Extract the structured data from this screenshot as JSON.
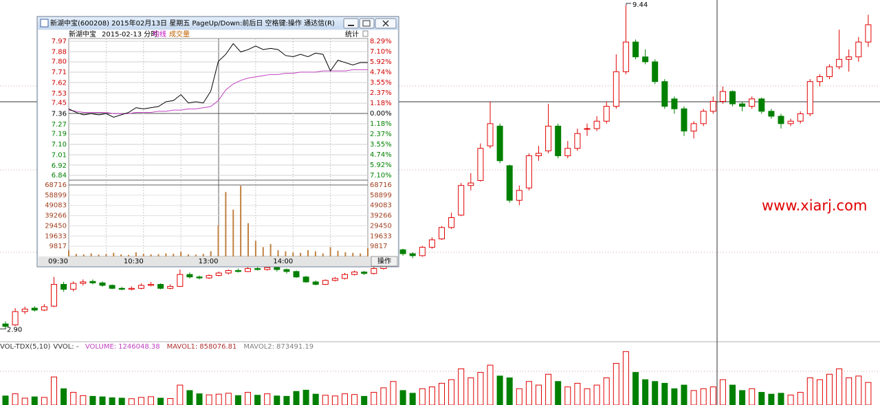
{
  "window": {
    "title": "新湖中宝(600208) 2015年02月13日 星期五 PageUp/Down:前后日 空格键:操作 通达信(R)"
  },
  "watermark": "www.xiarj.com",
  "chart_data": [
    {
      "type": "candlestick",
      "candles": [
        [
          3.0,
          3.05,
          2.9,
          2.95
        ],
        [
          2.98,
          3.32,
          2.96,
          3.25
        ],
        [
          3.25,
          3.35,
          3.2,
          3.3
        ],
        [
          3.32,
          3.36,
          3.25,
          3.28
        ],
        [
          3.28,
          3.4,
          3.26,
          3.35
        ],
        [
          3.36,
          3.95,
          3.34,
          3.8
        ],
        [
          3.8,
          3.85,
          3.65,
          3.7
        ],
        [
          3.7,
          3.86,
          3.66,
          3.82
        ],
        [
          3.82,
          3.9,
          3.78,
          3.85
        ],
        [
          3.86,
          3.9,
          3.8,
          3.83
        ],
        [
          3.83,
          3.86,
          3.75,
          3.78
        ],
        [
          3.78,
          3.8,
          3.7,
          3.72
        ],
        [
          3.72,
          3.75,
          3.68,
          3.7
        ],
        [
          3.7,
          3.76,
          3.68,
          3.72
        ],
        [
          3.72,
          3.82,
          3.7,
          3.78
        ],
        [
          3.78,
          3.85,
          3.76,
          3.8
        ],
        [
          3.8,
          3.82,
          3.7,
          3.72
        ],
        [
          3.72,
          3.8,
          3.7,
          3.76
        ],
        [
          3.76,
          4.1,
          3.75,
          4.0
        ],
        [
          4.0,
          4.04,
          3.92,
          3.95
        ],
        [
          3.95,
          3.98,
          3.9,
          3.93
        ],
        [
          3.93,
          4.0,
          3.91,
          3.98
        ],
        [
          3.98,
          4.06,
          3.96,
          4.03
        ],
        [
          4.03,
          4.1,
          4.0,
          4.08
        ],
        [
          4.08,
          4.12,
          4.04,
          4.06
        ],
        [
          4.06,
          4.15,
          4.05,
          4.12
        ],
        [
          4.12,
          4.16,
          4.08,
          4.1
        ],
        [
          4.1,
          4.18,
          4.08,
          4.14
        ],
        [
          4.14,
          4.16,
          4.06,
          4.1
        ],
        [
          4.1,
          4.12,
          4.02,
          4.06
        ],
        [
          4.06,
          4.08,
          3.93,
          3.95
        ],
        [
          3.95,
          3.97,
          3.83,
          3.85
        ],
        [
          3.85,
          3.88,
          3.78,
          3.8
        ],
        [
          3.8,
          3.9,
          3.79,
          3.88
        ],
        [
          3.88,
          3.95,
          3.86,
          3.92
        ],
        [
          3.92,
          4.03,
          3.9,
          4.0
        ],
        [
          4.0,
          4.08,
          3.98,
          4.05
        ],
        [
          4.05,
          4.07,
          3.99,
          4.02
        ],
        [
          4.02,
          4.15,
          4.0,
          4.12
        ],
        [
          4.12,
          4.35,
          4.1,
          4.3
        ],
        [
          4.3,
          4.55,
          4.28,
          4.5
        ],
        [
          4.5,
          4.52,
          4.38,
          4.42
        ],
        [
          4.42,
          4.45,
          4.33,
          4.38
        ],
        [
          4.38,
          4.58,
          4.36,
          4.55
        ],
        [
          4.55,
          4.75,
          4.52,
          4.7
        ],
        [
          4.72,
          4.98,
          4.7,
          4.95
        ],
        [
          4.95,
          5.25,
          4.92,
          5.15
        ],
        [
          5.2,
          5.85,
          5.18,
          5.8
        ],
        [
          5.8,
          6.05,
          5.7,
          5.85
        ],
        [
          5.9,
          6.65,
          5.88,
          6.55
        ],
        [
          6.6,
          7.5,
          6.55,
          7.05
        ],
        [
          7.0,
          7.05,
          6.25,
          6.3
        ],
        [
          6.2,
          6.22,
          5.45,
          5.5
        ],
        [
          5.5,
          5.8,
          5.4,
          5.7
        ],
        [
          5.75,
          6.45,
          5.7,
          6.4
        ],
        [
          6.4,
          6.6,
          6.3,
          6.45
        ],
        [
          6.5,
          7.45,
          6.45,
          7.0
        ],
        [
          7.0,
          7.05,
          6.35,
          6.4
        ],
        [
          6.4,
          6.7,
          6.35,
          6.55
        ],
        [
          6.55,
          6.95,
          6.5,
          6.85
        ],
        [
          6.95,
          7.05,
          6.8,
          6.95
        ],
        [
          6.95,
          7.2,
          6.9,
          7.1
        ],
        [
          7.1,
          7.5,
          7.05,
          7.4
        ],
        [
          7.4,
          8.45,
          7.35,
          8.1
        ],
        [
          8.1,
          9.44,
          8.05,
          8.7
        ],
        [
          8.7,
          8.75,
          8.35,
          8.4
        ],
        [
          8.4,
          8.55,
          8.25,
          8.3
        ],
        [
          8.3,
          8.35,
          7.85,
          7.9
        ],
        [
          7.9,
          7.95,
          7.35,
          7.4
        ],
        [
          7.55,
          7.6,
          7.25,
          7.35
        ],
        [
          7.35,
          7.4,
          6.8,
          6.9
        ],
        [
          6.9,
          7.1,
          6.75,
          7.05
        ],
        [
          7.05,
          7.35,
          7.0,
          7.3
        ],
        [
          7.3,
          7.6,
          7.25,
          7.5
        ],
        [
          7.5,
          7.8,
          7.45,
          7.7
        ],
        [
          7.7,
          7.72,
          7.4,
          7.45
        ],
        [
          7.45,
          7.5,
          7.3,
          7.4
        ],
        [
          7.4,
          7.6,
          7.35,
          7.55
        ],
        [
          7.55,
          7.58,
          7.25,
          7.3
        ],
        [
          7.3,
          7.35,
          7.15,
          7.2
        ],
        [
          7.2,
          7.25,
          6.95,
          7.05
        ],
        [
          7.05,
          7.15,
          7.0,
          7.1
        ],
        [
          7.1,
          7.3,
          7.05,
          7.25
        ],
        [
          7.25,
          7.95,
          7.2,
          7.9
        ],
        [
          7.9,
          8.05,
          7.8,
          8.0
        ],
        [
          8.0,
          8.25,
          7.95,
          8.2
        ],
        [
          8.2,
          8.95,
          8.15,
          8.35
        ],
        [
          8.35,
          8.55,
          8.1,
          8.4
        ],
        [
          8.4,
          8.8,
          8.3,
          8.7
        ],
        [
          8.7,
          9.25,
          8.6,
          9.05
        ]
      ],
      "ylim": [
        2.64,
        9.55
      ],
      "high_label": 9.44,
      "low_label": {
        "value": 2.9,
        "label": "2.90"
      },
      "up_color": "#e00000",
      "down_color": "#008000",
      "volume": {
        "ylim": [
          0,
          3000000
        ],
        "values": [
          500000,
          620000,
          380000,
          450000,
          420000,
          1550000,
          900000,
          700000,
          520000,
          480000,
          450000,
          400000,
          380000,
          350000,
          420000,
          460000,
          380000,
          360000,
          1100000,
          800000,
          620000,
          560000,
          600000,
          650000,
          520000,
          700000,
          540000,
          620000,
          500000,
          480000,
          750000,
          820000,
          600000,
          540000,
          500000,
          620000,
          580000,
          480000,
          700000,
          950000,
          1300000,
          800000,
          650000,
          900000,
          1000000,
          1200000,
          1400000,
          2000000,
          1500000,
          1800000,
          2200000,
          1600000,
          1500000,
          900000,
          1300000,
          1100000,
          1700000,
          1300000,
          1000000,
          1200000,
          900000,
          1100000,
          1500000,
          2300000,
          2950000,
          1800000,
          1400000,
          1300000,
          1200000,
          900000,
          1100000,
          800000,
          900000,
          1000000,
          1400000,
          1100000,
          800000,
          900000,
          700000,
          600000,
          650000,
          550000,
          700000,
          1500000,
          1400000,
          1700000,
          2000000,
          1500000,
          1600000,
          1246048.38
        ]
      },
      "indicator": {
        "name": "VOL-TDX(5,10)",
        "vvol": "VVOL: -",
        "items": [
          {
            "label": "VOLUME:",
            "value": 1246048.38,
            "color": "#c040c0"
          },
          {
            "label": "MAVOL1:",
            "value": 858076.81,
            "color": "#b03030"
          },
          {
            "label": "MAVOL2:",
            "value": 873491.19,
            "color": "#808080"
          }
        ]
      }
    },
    {
      "type": "intraday",
      "title": "新湖中宝",
      "subtitle": "2015-02-13 分时",
      "legend": [
        {
          "name": "均线",
          "color": "#c000c0"
        },
        {
          "name": "成交量",
          "color": "#c06000"
        }
      ],
      "stats_button": "统计",
      "action_button": "操作",
      "x": [
        0,
        6,
        12,
        18,
        24,
        30,
        36,
        42,
        48,
        54,
        60,
        66,
        72,
        78,
        84,
        90,
        96,
        102,
        108,
        114,
        120,
        126,
        132,
        138,
        144,
        150,
        156,
        162,
        168,
        174,
        180,
        186,
        192,
        198,
        204,
        210,
        216,
        222,
        228,
        234,
        240
      ],
      "xlim": [
        0,
        240
      ],
      "xticks": [
        {
          "value": 0,
          "label": "09:30"
        },
        {
          "value": 60,
          "label": "10:30"
        },
        {
          "value": 120,
          "label": "13:00"
        },
        {
          "value": 180,
          "label": "14:00"
        }
      ],
      "price": {
        "color": "#000000",
        "values": [
          7.4,
          7.37,
          7.35,
          7.36,
          7.35,
          7.36,
          7.33,
          7.35,
          7.37,
          7.41,
          7.4,
          7.41,
          7.42,
          7.46,
          7.47,
          7.52,
          7.45,
          7.46,
          7.45,
          7.55,
          7.8,
          7.86,
          7.95,
          7.88,
          7.9,
          7.93,
          7.9,
          7.91,
          7.9,
          7.85,
          7.84,
          7.86,
          7.84,
          7.87,
          7.86,
          7.72,
          7.81,
          7.79,
          7.77,
          7.79,
          7.79
        ]
      },
      "average": {
        "color": "#c040c0",
        "values": [
          7.39,
          7.38,
          7.37,
          7.37,
          7.37,
          7.37,
          7.36,
          7.36,
          7.36,
          7.37,
          7.37,
          7.37,
          7.38,
          7.38,
          7.39,
          7.39,
          7.4,
          7.4,
          7.41,
          7.42,
          7.47,
          7.56,
          7.61,
          7.64,
          7.66,
          7.67,
          7.68,
          7.69,
          7.69,
          7.7,
          7.7,
          7.71,
          7.71,
          7.71,
          7.72,
          7.72,
          7.72,
          7.72,
          7.73,
          7.73,
          7.73
        ]
      },
      "ylim": [
        6.84,
        7.97
      ],
      "yticks": [
        7.97,
        7.88,
        {
          "value": 7.8,
          "label": "7.80"
        },
        7.71,
        7.62,
        7.53,
        7.45,
        7.36,
        7.27,
        7.19,
        {
          "value": 7.1,
          "label": "7.10"
        },
        7.01,
        6.92,
        6.84
      ],
      "y2lim": [
        -7.1,
        8.29
      ],
      "y2ticks": [
        {
          "value": 8.29,
          "label": "8.29%"
        },
        {
          "value": 7.1,
          "label": "7.10%"
        },
        {
          "value": 5.92,
          "label": "5.92%"
        },
        {
          "value": 4.74,
          "label": "4.74%"
        },
        {
          "value": 3.55,
          "label": "3.55%"
        },
        {
          "value": 2.37,
          "label": "2.37%"
        },
        {
          "value": 1.18,
          "label": "1.18%"
        },
        {
          "value": 0,
          "label": "0.00%"
        },
        {
          "value": -1.18,
          "label": "1.18%"
        },
        {
          "value": -2.37,
          "label": "2.37%"
        },
        {
          "value": -3.55,
          "label": "3.55%"
        },
        {
          "value": -4.74,
          "label": "4.74%"
        },
        {
          "value": -5.92,
          "label": "5.92%"
        },
        {
          "value": -7.1,
          "label": "7.10%"
        }
      ],
      "volume": {
        "color": "#c08040",
        "ylim": [
          0,
          68716
        ],
        "yticks": [
          68716,
          58899,
          49083,
          39266,
          29450,
          19633,
          9817
        ],
        "values": [
          6000,
          2500,
          2000,
          3000,
          1800,
          2200,
          3500,
          2000,
          1500,
          4000,
          2500,
          2000,
          2200,
          3000,
          2600,
          4500,
          2000,
          1800,
          2500,
          5000,
          30000,
          62000,
          45000,
          68000,
          32000,
          15000,
          9000,
          12000,
          6000,
          5000,
          4000,
          3500,
          6000,
          5000,
          3000,
          9000,
          5500,
          4000,
          3500,
          3000,
          8000
        ]
      }
    }
  ]
}
